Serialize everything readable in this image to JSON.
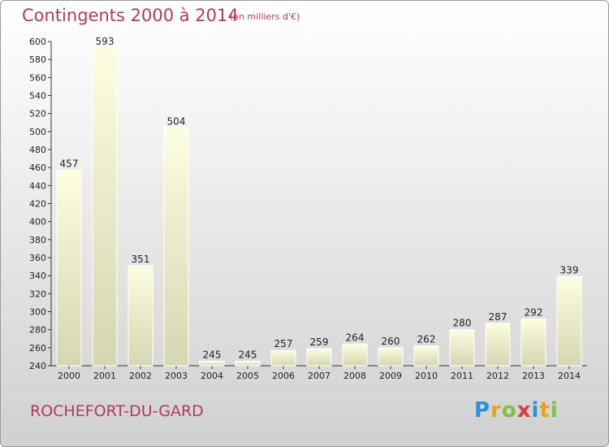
{
  "header": {
    "title": "Contingents 2000 à 2014",
    "subtitle": "(en milliers d'€)"
  },
  "footer": {
    "commune": "ROCHEFORT-DU-GARD",
    "logo_letters": [
      "P",
      "r",
      "o",
      "x",
      "i",
      "t",
      "i"
    ]
  },
  "chart_data": {
    "type": "bar",
    "categories": [
      "2000",
      "2001",
      "2002",
      "2003",
      "2004",
      "2005",
      "2006",
      "2007",
      "2008",
      "2009",
      "2010",
      "2011",
      "2012",
      "2013",
      "2014"
    ],
    "values": [
      457,
      593,
      351,
      504,
      245,
      245,
      257,
      259,
      264,
      260,
      262,
      280,
      287,
      292,
      339
    ],
    "ylim": [
      240,
      600
    ],
    "yticks": [
      240,
      260,
      280,
      300,
      320,
      340,
      360,
      380,
      400,
      420,
      440,
      460,
      480,
      500,
      520,
      540,
      560,
      580,
      600
    ],
    "grid": false,
    "bar_color_top": "#fdfde0",
    "bar_color_bottom": "#d6d6b0"
  }
}
